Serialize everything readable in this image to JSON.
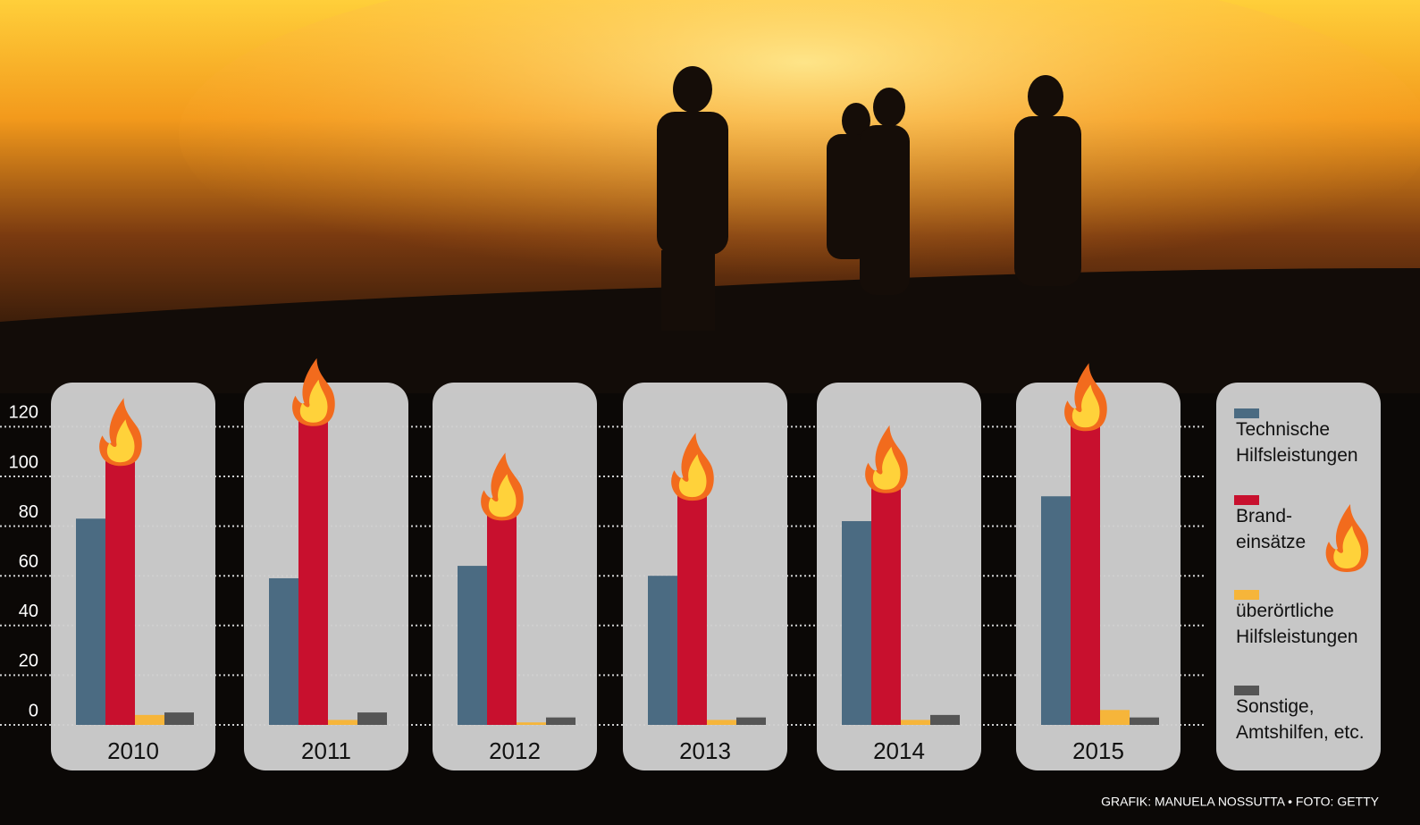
{
  "chart_data": {
    "type": "bar",
    "categories": [
      "2010",
      "2011",
      "2012",
      "2013",
      "2014",
      "2015"
    ],
    "series": [
      {
        "name": "Technische\nHilfsleistungen",
        "color": "#4b6b82",
        "values": [
          83,
          59,
          64,
          60,
          82,
          92
        ]
      },
      {
        "name": "Brand-\neinsätze",
        "color": "#c8102e",
        "values": [
          110,
          126,
          88,
          96,
          99,
          124
        ]
      },
      {
        "name": "überörtliche\nHilfsleistungen",
        "color": "#f6b53a",
        "values": [
          4,
          2,
          1,
          2,
          2,
          6
        ]
      },
      {
        "name": "Sonstige,\nAmtshilfen, etc.",
        "color": "#555555",
        "values": [
          5,
          5,
          3,
          3,
          4,
          3
        ]
      }
    ],
    "ylim": [
      0,
      135
    ],
    "yticks": [
      0,
      20,
      40,
      60,
      80,
      100,
      120
    ],
    "grid": true,
    "credit": "GRAFIK: MANUELA NOSSUTTA • FOTO: GETTY"
  }
}
